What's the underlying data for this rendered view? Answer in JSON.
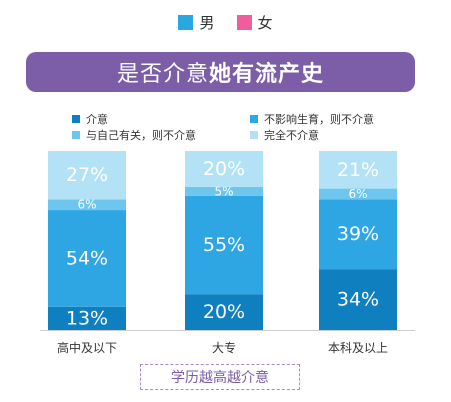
{
  "gender_legend": [
    {
      "label": "男",
      "color": "#29a8df"
    },
    {
      "label": "女",
      "color": "#ef5d9f"
    }
  ],
  "title": {
    "part1": "是否介意",
    "part2": "她有流产史"
  },
  "chart_data": {
    "type": "bar",
    "stacked": true,
    "categories": [
      "高中及以下",
      "大专",
      "本科及以上"
    ],
    "series": [
      {
        "name": "介意",
        "color": "#0f7fc0",
        "values": [
          13,
          20,
          34
        ]
      },
      {
        "name": "不影响生育，则不介意",
        "color": "#2fa6e4",
        "values": [
          54,
          55,
          39
        ]
      },
      {
        "name": "与自己有关，则不介意",
        "color": "#6ec6ee",
        "values": [
          6,
          5,
          6
        ]
      },
      {
        "name": "完全不介意",
        "color": "#b3e2f7",
        "values": [
          27,
          20,
          21
        ]
      }
    ],
    "value_suffix": "%",
    "ylim": [
      0,
      100
    ]
  },
  "footer": "学历越高越介意"
}
